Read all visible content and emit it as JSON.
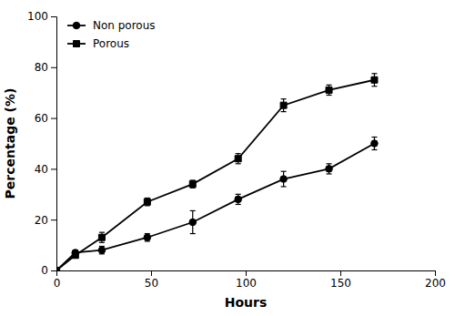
{
  "chart_data": {
    "type": "line",
    "xlabel": "Hours",
    "ylabel": "Percentage (%)",
    "x": [
      0,
      10,
      24,
      48,
      72,
      96,
      120,
      144,
      168
    ],
    "series": [
      {
        "name": "Non porous",
        "color": "#000000",
        "marker": "circle",
        "values": [
          0,
          7,
          8,
          13,
          19,
          28,
          36,
          40,
          50
        ],
        "errors": [
          0,
          1.0,
          1.5,
          1.5,
          4.5,
          2.0,
          3.0,
          2.0,
          2.5
        ]
      },
      {
        "name": "Porous",
        "color": "#000000",
        "marker": "square",
        "values": [
          0,
          6,
          13,
          27,
          34,
          44,
          65,
          71,
          75
        ],
        "errors": [
          0,
          1.0,
          2.0,
          1.5,
          1.5,
          2.0,
          2.5,
          2.0,
          2.5
        ]
      }
    ],
    "xlim": [
      0,
      200
    ],
    "ylim": [
      0,
      100
    ],
    "xticks": [
      0,
      50,
      100,
      150,
      200
    ],
    "yticks": [
      0,
      20,
      40,
      60,
      80,
      100
    ],
    "grid": false,
    "legend": "upper left"
  }
}
